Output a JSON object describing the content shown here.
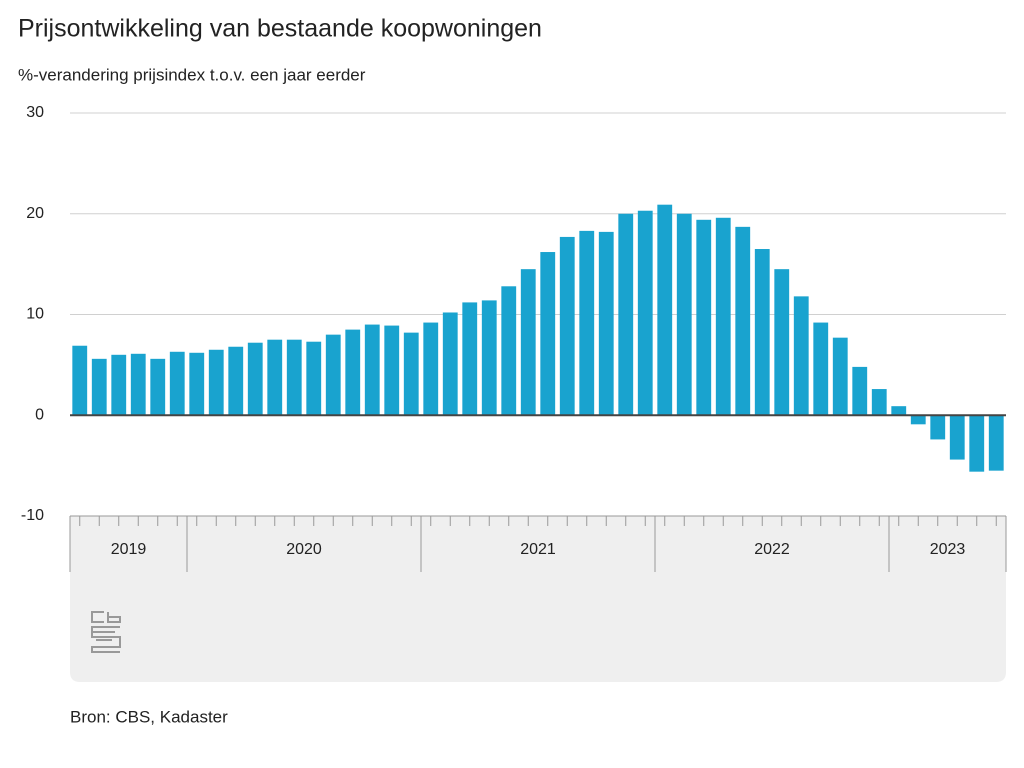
{
  "chart_data": {
    "type": "bar",
    "title": "Prijsontwikkeling van bestaande koopwoningen",
    "subtitle": "%-verandering prijsindex t.o.v. een jaar eerder",
    "source": "Bron: CBS, Kadaster",
    "categories": [
      "2019",
      "2019",
      "2019",
      "2019",
      "2019",
      "2019",
      "2020",
      "2020",
      "2020",
      "2020",
      "2020",
      "2020",
      "2020",
      "2020",
      "2020",
      "2020",
      "2020",
      "2020",
      "2021",
      "2021",
      "2021",
      "2021",
      "2021",
      "2021",
      "2021",
      "2021",
      "2021",
      "2021",
      "2021",
      "2021",
      "2022",
      "2022",
      "2022",
      "2022",
      "2022",
      "2022",
      "2022",
      "2022",
      "2022",
      "2022",
      "2022",
      "2022",
      "2023",
      "2023",
      "2023",
      "2023",
      "2023",
      "2023"
    ],
    "values": [
      6.9,
      5.6,
      6.0,
      6.1,
      5.6,
      6.3,
      6.2,
      6.5,
      6.8,
      7.2,
      7.5,
      7.5,
      7.3,
      8.0,
      8.5,
      9.0,
      8.9,
      8.2,
      9.2,
      10.2,
      11.2,
      11.4,
      12.8,
      14.5,
      16.2,
      17.7,
      18.3,
      18.2,
      20.0,
      20.3,
      20.9,
      20.0,
      19.4,
      19.6,
      18.7,
      16.5,
      14.5,
      11.8,
      9.2,
      7.7,
      4.8,
      2.6,
      0.9,
      -0.9,
      -2.4,
      -4.4,
      -5.6,
      -5.5
    ],
    "color": "#19a3cf",
    "ylim": [
      -10,
      30
    ],
    "yticks": [
      -10,
      0,
      10,
      20,
      30
    ],
    "grid": true
  }
}
